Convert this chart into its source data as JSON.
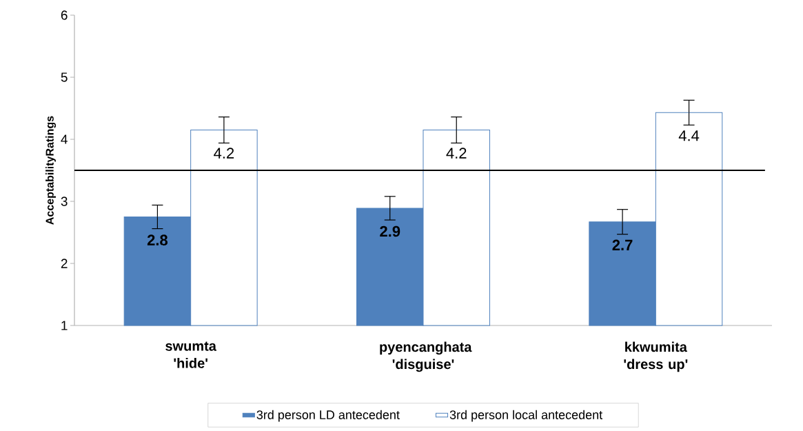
{
  "chart_data": {
    "type": "bar",
    "ylabel": "AcceptabilityRatings",
    "categories": [
      "swumta 'hide'",
      "pyencanghata 'disguise'",
      "kkwumita 'dress up'"
    ],
    "series": [
      {
        "name": "3rd person LD antecedent",
        "color": "#4f81bd",
        "values": [
          2.75,
          2.89,
          2.67
        ],
        "errors": [
          0.19,
          0.19,
          0.2
        ],
        "value_labels": [
          "2.8",
          "2.9",
          "2.7"
        ]
      },
      {
        "name": "3rd person local antecedent",
        "color": "#ffffff",
        "values": [
          4.15,
          4.15,
          4.43
        ],
        "errors": [
          0.21,
          0.21,
          0.2
        ],
        "value_labels": [
          "4.2",
          "4.2",
          "4.4"
        ]
      }
    ],
    "ylim": [
      1,
      6
    ],
    "yticks": [
      1,
      2,
      3,
      4,
      5,
      6
    ],
    "ref_lines": [
      {
        "axis": "y",
        "value": 3.5,
        "color": "#000000"
      }
    ],
    "grid": false,
    "legend": "bottom"
  }
}
